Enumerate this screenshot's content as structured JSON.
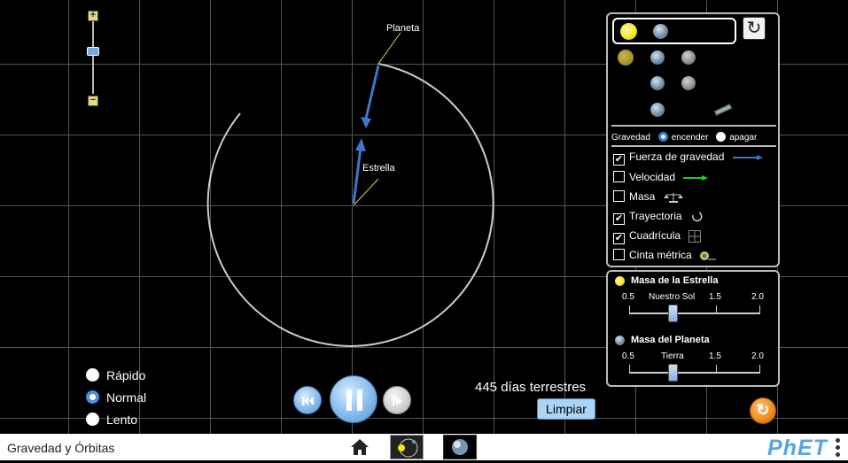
{
  "sim": {
    "labels": {
      "planet": "Planeta",
      "star": "Estrella"
    },
    "zoom": {
      "plus": "+",
      "minus": "−"
    }
  },
  "body_panel": {
    "gravity": {
      "label": "Gravedad",
      "on": "encender",
      "off": "apagar",
      "selected": "encender"
    },
    "checkboxes": [
      {
        "label": "Fuerza de gravedad",
        "checked": true,
        "icon": "gravity-arrow-icon"
      },
      {
        "label": "Velocidad",
        "checked": false,
        "icon": "velocity-arrow-icon"
      },
      {
        "label": "Masa",
        "checked": false,
        "icon": "scale-icon"
      },
      {
        "label": "Trayectoria",
        "checked": true,
        "icon": "path-icon"
      },
      {
        "label": "Cuadrícula",
        "checked": true,
        "icon": "grid-icon"
      },
      {
        "label": "Cinta métrica",
        "checked": false,
        "icon": "tape-measure-icon"
      }
    ]
  },
  "mass_panel": {
    "star": {
      "title": "Masa de la Estrella",
      "ticks": [
        "0.5",
        "Nuestro Sol",
        "1.5",
        "2.0"
      ],
      "value_fraction": 0.333
    },
    "planet": {
      "title": "Masa del Planeta",
      "ticks": [
        "0.5",
        "Tierra",
        "1.5",
        "2.0"
      ],
      "value_fraction": 0.333
    }
  },
  "speed": {
    "options": [
      "Rápido",
      "Normal",
      "Lento"
    ],
    "selected": "Normal"
  },
  "time": {
    "days": "445 días terrestres",
    "clear": "Limpiar"
  },
  "footer": {
    "title": "Gravedad y Órbitas",
    "logo": "PhET"
  },
  "colors": {
    "force_arrow": "#3b78c8",
    "velocity_arrow": "#1fd11f",
    "grid": "#555555",
    "accent": "#4a90e2",
    "reset": "#f08a1a"
  }
}
